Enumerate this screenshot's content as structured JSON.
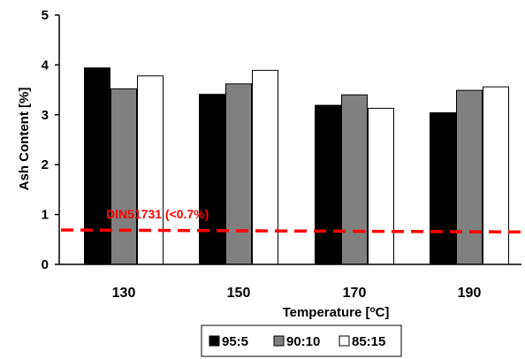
{
  "chart_data": {
    "type": "bar",
    "title": "",
    "xlabel_text": "Temperature [",
    "xlabel_sup": "o",
    "xlabel_unit": "C]",
    "ylabel": "Ash Content [%]",
    "ylim": [
      0,
      5
    ],
    "yticks": [
      "0",
      "1",
      "2",
      "3",
      "4",
      "5"
    ],
    "categories": [
      "130",
      "150",
      "170",
      "190"
    ],
    "series": [
      {
        "name": "95:5",
        "color": "#000000",
        "values": [
          3.94,
          3.41,
          3.19,
          3.04
        ]
      },
      {
        "name": "90:10",
        "color": "#808080",
        "values": [
          3.52,
          3.62,
          3.4,
          3.49
        ]
      },
      {
        "name": "85:15",
        "color": "#ffffff",
        "values": [
          3.78,
          3.89,
          3.13,
          3.56
        ]
      }
    ],
    "reference_line": {
      "label": "DIN51731 (<0.7%)",
      "value_start": 0.69,
      "value_end": 0.65,
      "color": "#ff0000",
      "style": "dashed"
    },
    "legend_position": "bottom",
    "grid": false
  }
}
